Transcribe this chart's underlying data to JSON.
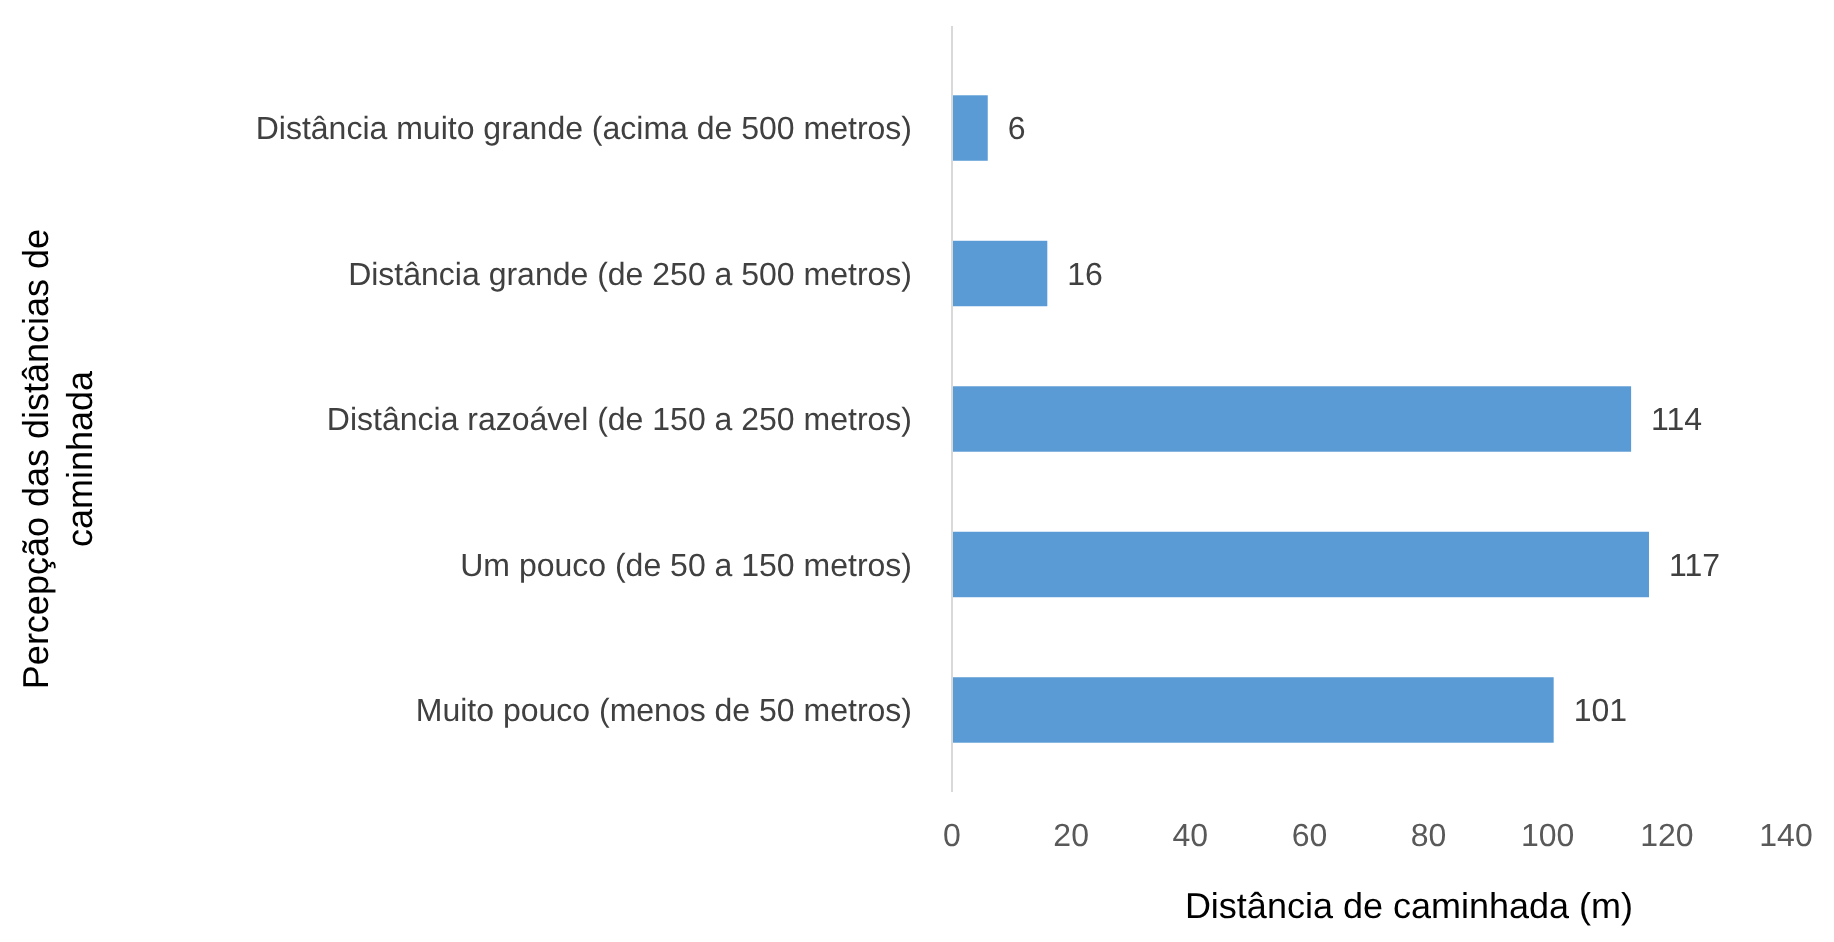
{
  "chart_data": {
    "type": "bar",
    "orientation": "horizontal",
    "xlabel": "Distância de caminhada (m)",
    "ylabel": "Percepção das distâncias de caminhada",
    "categories": [
      "Distância muito grande (acima de 500 metros)",
      "Distância grande (de 250 a 500 metros)",
      "Distância razoável (de 150 a 250 metros)",
      "Um pouco (de 50 a 150 metros)",
      "Muito pouco (menos de 50 metros)"
    ],
    "values": [
      6,
      16,
      114,
      117,
      101
    ],
    "color": "#5b9bd5",
    "xlim": [
      0,
      140
    ],
    "xticks": [
      0,
      20,
      40,
      60,
      80,
      100,
      120,
      140
    ],
    "data_labels": true,
    "grid": false
  }
}
